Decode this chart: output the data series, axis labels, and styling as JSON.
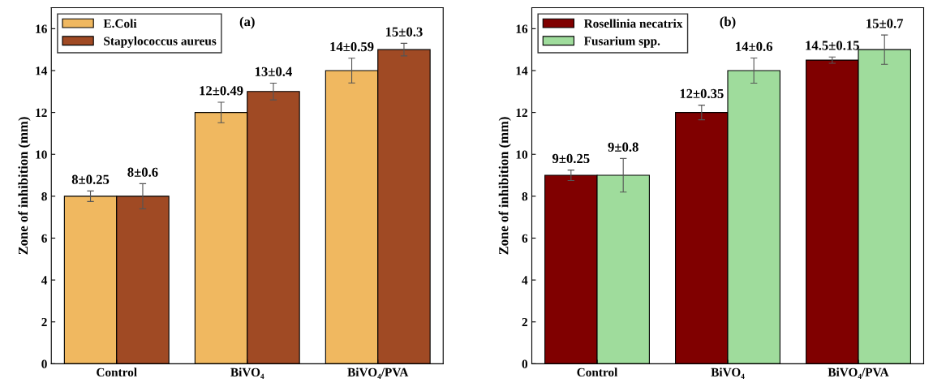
{
  "chart_data": [
    {
      "type": "bar",
      "categories": [
        "Control",
        "BiVO₄",
        "BiVO₄/PVA"
      ],
      "ylabel": "Zone of inhibition (mm)",
      "ylim": [
        0,
        17
      ],
      "yticks": [
        0,
        2,
        4,
        6,
        8,
        10,
        12,
        14,
        16
      ],
      "legend": "top left",
      "annotations": [
        "(a)"
      ],
      "series": [
        {
          "name": "E.Coli",
          "color": "#f0b860",
          "values": [
            8,
            12,
            14
          ],
          "errors": [
            0.25,
            0.49,
            0.59
          ],
          "value_labels": [
            "8±0.25",
            "12±0.49",
            "14±0.59"
          ]
        },
        {
          "name": "Stapylococcus aureus",
          "color": "#a04a24",
          "values": [
            8,
            13,
            15
          ],
          "errors": [
            0.6,
            0.4,
            0.3
          ],
          "value_labels": [
            "8±0.6",
            "13±0.4",
            "15±0.3"
          ]
        }
      ]
    },
    {
      "type": "bar",
      "categories": [
        "Control",
        "BiVO₄",
        "BiVO₄/PVA"
      ],
      "ylabel": "Zone of inhibition (mm)",
      "ylim": [
        0,
        17
      ],
      "yticks": [
        0,
        2,
        4,
        6,
        8,
        10,
        12,
        14,
        16
      ],
      "legend": "top left",
      "annotations": [
        "(b)"
      ],
      "series": [
        {
          "name": "Rosellinia necatrix",
          "color": "#800000",
          "values": [
            9,
            12,
            14.5
          ],
          "errors": [
            0.25,
            0.35,
            0.15
          ],
          "value_labels": [
            "9±0.25",
            "12±0.35",
            "14.5±0.15"
          ]
        },
        {
          "name": "Fusarium spp.",
          "color": "#9fdc9c",
          "values": [
            9,
            14,
            15
          ],
          "errors": [
            0.8,
            0.6,
            0.7
          ],
          "value_labels": [
            "9±0.8",
            "14±0.6",
            "15±0.7"
          ]
        }
      ]
    }
  ]
}
